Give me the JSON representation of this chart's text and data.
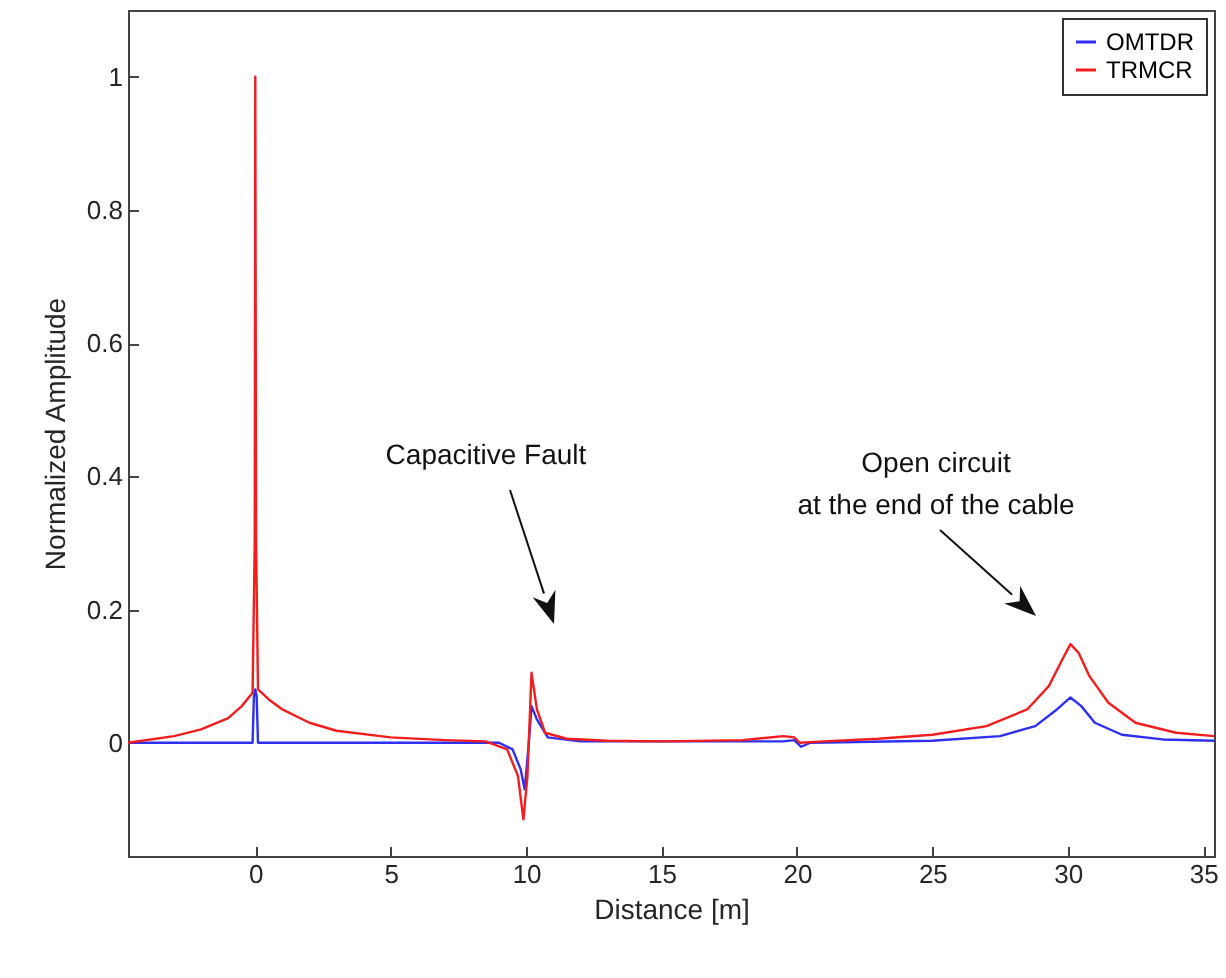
{
  "chart_data": {
    "type": "line",
    "xlabel": "Distance [m]",
    "ylabel": "Normalized Amplitude",
    "xlim": [
      -4.7,
      35.4
    ],
    "ylim": [
      -0.17,
      1.1
    ],
    "xticks": [
      0,
      5,
      10,
      15,
      20,
      25,
      30,
      35
    ],
    "yticks": [
      0,
      0.2,
      0.4,
      0.6,
      0.8,
      1
    ],
    "grid": false,
    "legend": "top right",
    "marker": "none",
    "line_style": "solid",
    "annotations": [
      "Capacitive Fault",
      "Open circuit\nat the end of the cable"
    ],
    "series": [
      {
        "name": "OMTDR",
        "color": "#2f2ff0",
        "x": [
          -4.7,
          -2,
          -0.1,
          -0.05,
          0,
          0.05,
          0.1,
          5,
          9,
          9.5,
          9.8,
          9.95,
          10.1,
          10.2,
          10.4,
          10.8,
          12,
          19.5,
          19.9,
          20.15,
          20.5,
          25,
          27.5,
          28.8,
          29.6,
          30.1,
          30.5,
          31,
          32,
          33.5,
          35.4
        ],
        "values": [
          0,
          0,
          0,
          0.07,
          0.08,
          0.07,
          0,
          0,
          0,
          -0.01,
          -0.04,
          -0.07,
          0,
          0.055,
          0.035,
          0.008,
          0.002,
          0.002,
          0.004,
          -0.006,
          0,
          0.003,
          0.01,
          0.025,
          0.05,
          0.068,
          0.055,
          0.03,
          0.012,
          0.005,
          0.003
        ]
      },
      {
        "name": "TRMCR",
        "color": "#f01e1e",
        "x": [
          -4.7,
          -3,
          -2,
          -1,
          -0.5,
          -0.1,
          -0.02,
          0,
          0.03,
          0.1,
          0.5,
          1,
          2,
          3,
          5,
          7,
          8.5,
          9.3,
          9.7,
          9.9,
          10.05,
          10.2,
          10.4,
          10.7,
          11.5,
          13,
          15,
          18,
          19.5,
          19.9,
          20.1,
          21,
          23,
          25,
          27,
          28.5,
          29.3,
          29.8,
          30.1,
          30.4,
          30.8,
          31.5,
          32.5,
          34,
          35.4
        ],
        "values": [
          0,
          0.01,
          0.02,
          0.037,
          0.055,
          0.075,
          0.3,
          1,
          0.3,
          0.08,
          0.065,
          0.05,
          0.03,
          0.018,
          0.008,
          0.004,
          0.002,
          -0.01,
          -0.05,
          -0.115,
          -0.05,
          0.105,
          0.05,
          0.015,
          0.006,
          0.003,
          0.002,
          0.004,
          0.01,
          0.008,
          0,
          0.002,
          0.006,
          0.012,
          0.025,
          0.05,
          0.085,
          0.125,
          0.148,
          0.135,
          0.1,
          0.06,
          0.03,
          0.015,
          0.01
        ]
      }
    ]
  }
}
